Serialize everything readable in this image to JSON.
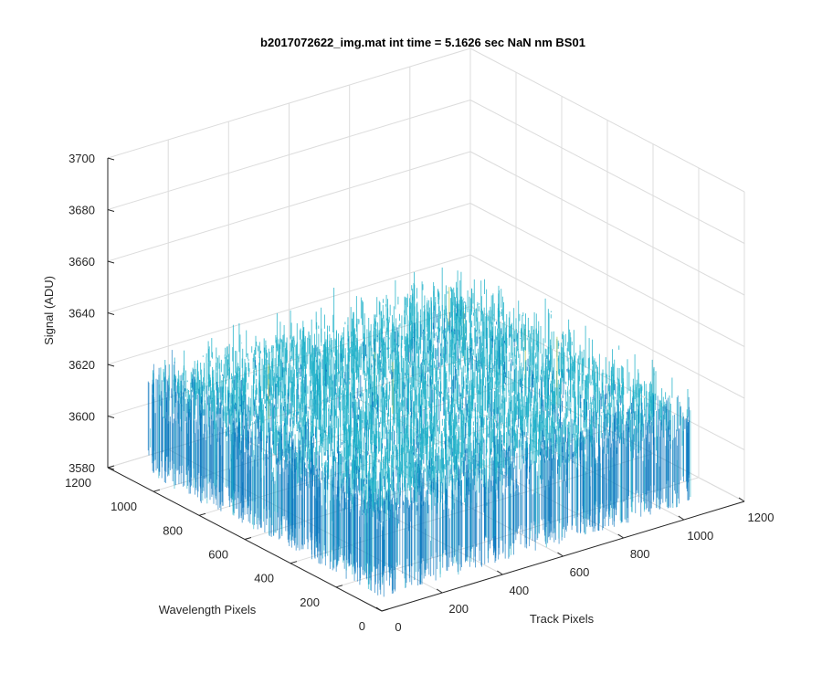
{
  "chart_data": {
    "type": "surface",
    "title": "b2017072622_img.mat int time = 5.1626 sec  NaN nm BS01",
    "xlabel": "Track Pixels",
    "ylabel": "Wavelength Pixels",
    "zlabel": "Signal (ADU)",
    "xlim": [
      0,
      1200
    ],
    "ylim": [
      0,
      1200
    ],
    "zlim": [
      3580,
      3700
    ],
    "x_ticks": [
      "0",
      "200",
      "400",
      "600",
      "800",
      "1000",
      "1200"
    ],
    "y_ticks": [
      "0",
      "200",
      "400",
      "600",
      "800",
      "1000",
      "1200"
    ],
    "z_ticks": [
      "3580",
      "3600",
      "3620",
      "3640",
      "3660",
      "3680",
      "3700"
    ],
    "x_tick_values": [
      0,
      200,
      400,
      600,
      800,
      1000,
      1200
    ],
    "y_tick_values": [
      0,
      200,
      400,
      600,
      800,
      1000,
      1200
    ],
    "z_tick_values": [
      3580,
      3600,
      3620,
      3640,
      3660,
      3680,
      3700
    ],
    "surface": {
      "x_range": [
        0,
        1024
      ],
      "y_range": [
        0,
        1024
      ],
      "mean_signal": 3620,
      "noise_range": [
        3585,
        3660
      ]
    },
    "grid": true,
    "colors": {
      "surface_low": "#0072bd",
      "surface_mid": "#1eb0c8",
      "surface_high": "#b6c75a",
      "axis": "#262626",
      "grid": "#dcdcdc"
    }
  }
}
